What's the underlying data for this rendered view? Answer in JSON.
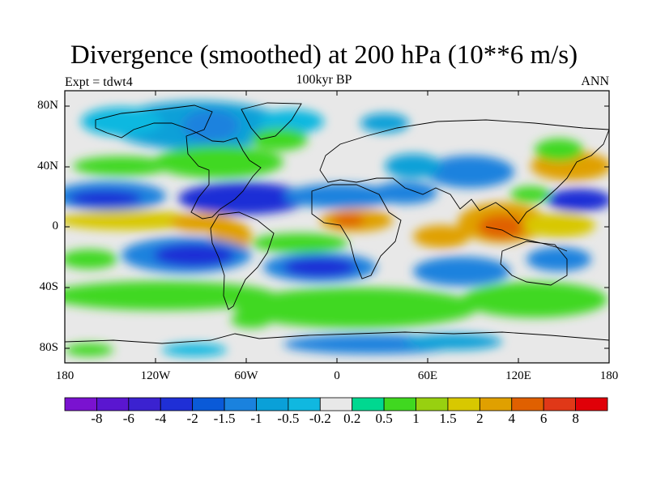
{
  "figure": {
    "title": "Divergence (smoothed) at 200 hPa (10**6 m/s)",
    "subtitle": "100kyr BP",
    "left_label": "Expt = tdwt4",
    "right_label": "ANN",
    "lat_labels": [
      "80N",
      "40N",
      "0",
      "40S",
      "80S"
    ],
    "lon_labels": [
      "180",
      "120W",
      "60W",
      "0",
      "60E",
      "120E",
      "180"
    ],
    "colorbar_levels": [
      "-8",
      "-6",
      "-4",
      "-2",
      "-1.5",
      "-1",
      "-0.5",
      "-0.2",
      "0.2",
      "0.5",
      "1",
      "1.5",
      "2",
      "4",
      "6",
      "8"
    ],
    "colorbar_colors": [
      "#7a12d0",
      "#5a16d0",
      "#3b22d0",
      "#1f2fd6",
      "#0a5ad8",
      "#1a82de",
      "#0aa0d8",
      "#10b8e0",
      "#e8e8e8",
      "#00d890",
      "#40d820",
      "#98d010",
      "#d8c800",
      "#e0a000",
      "#e06000",
      "#e03818",
      "#e00008"
    ]
  }
}
